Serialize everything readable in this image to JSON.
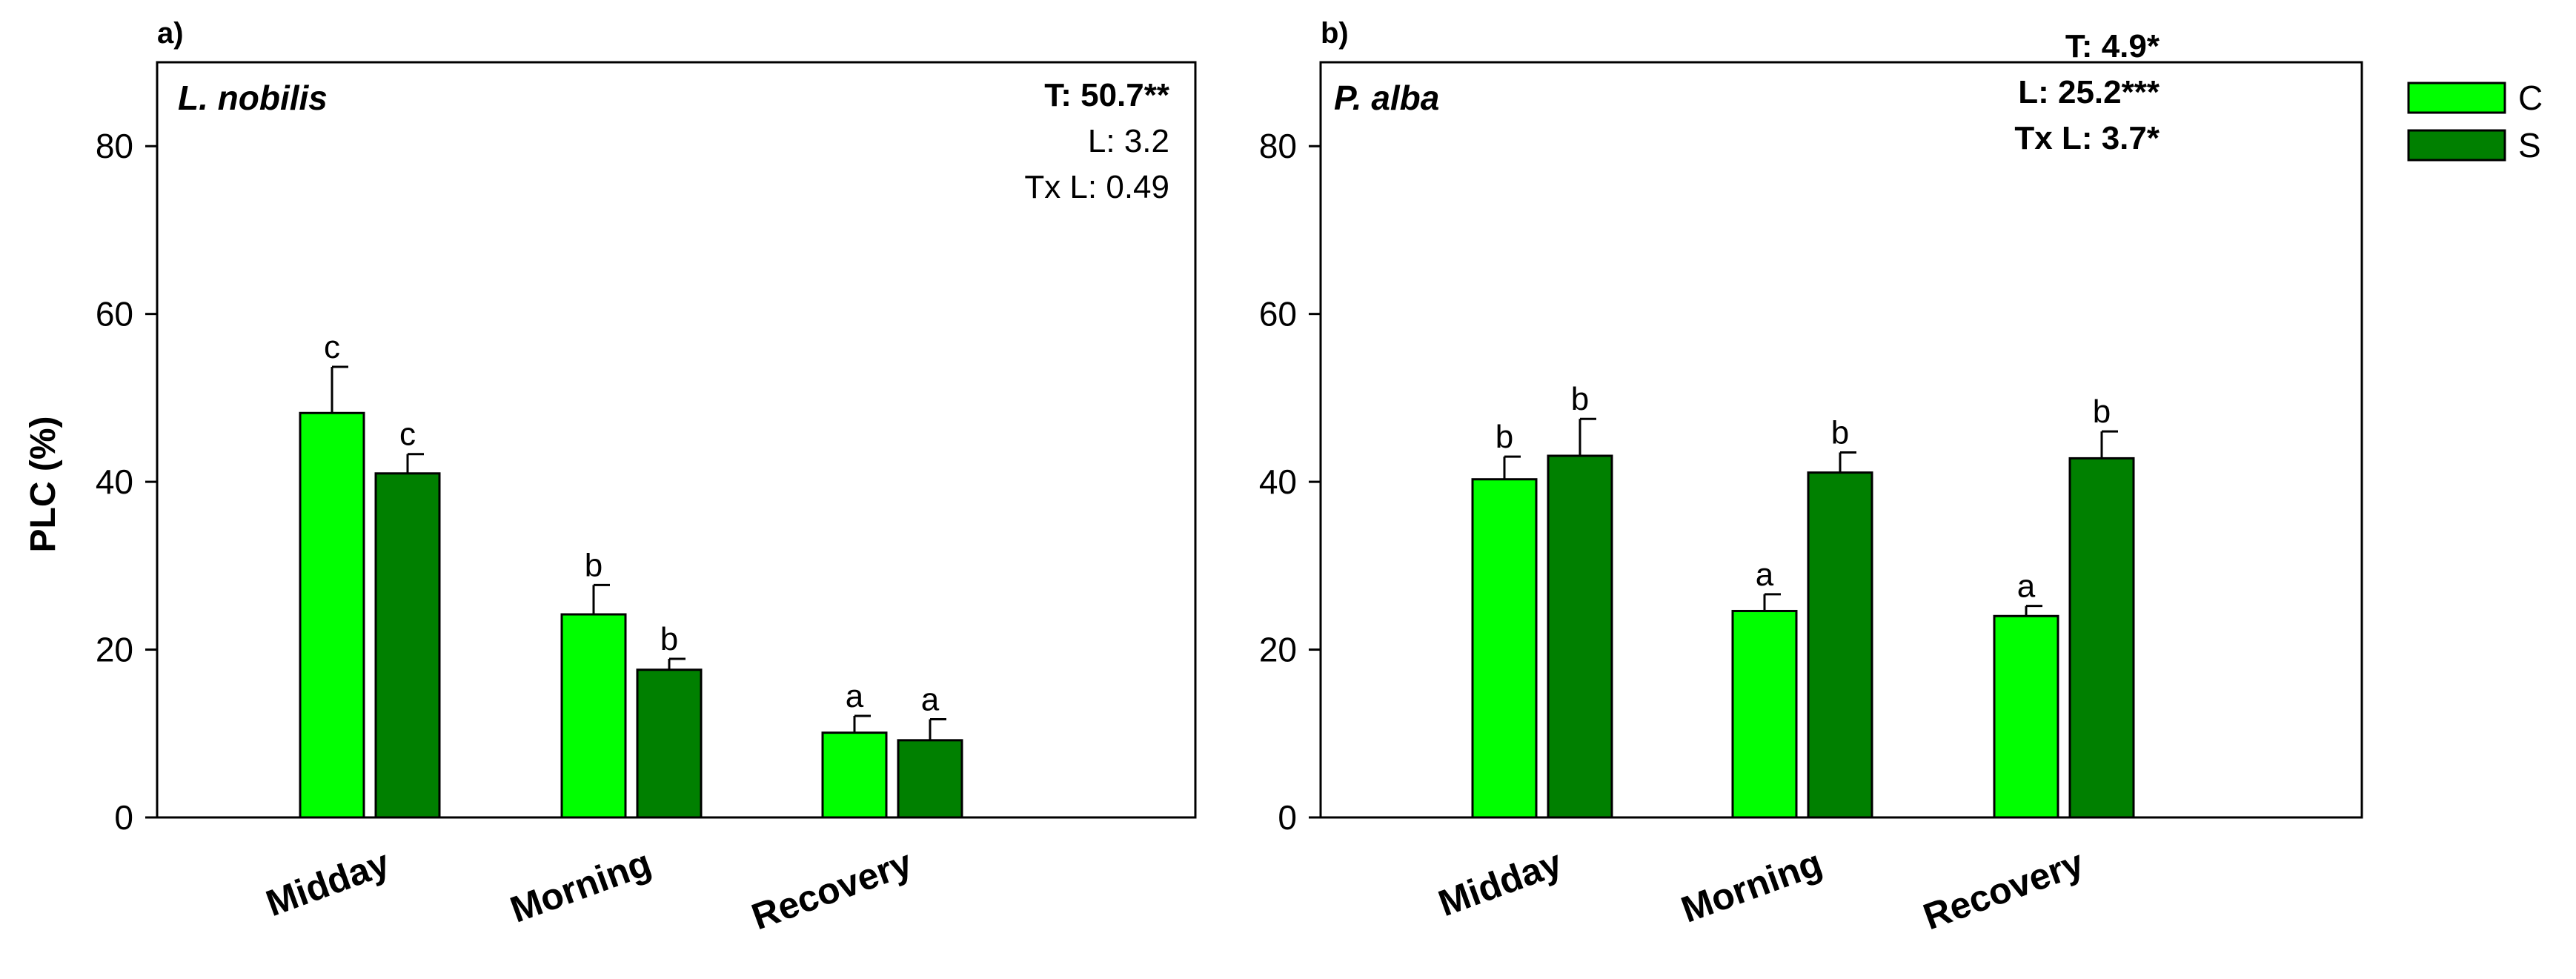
{
  "chart_data": [
    {
      "type": "bar",
      "panel_label": "a)",
      "species": "L. nobilis",
      "ylabel": "PLC (%)",
      "ylim": [
        0,
        90
      ],
      "yticks": [
        "0",
        "20",
        "40",
        "60",
        "80"
      ],
      "categories": [
        "Midday",
        "Morning",
        "Recovery"
      ],
      "series": [
        {
          "name": "C",
          "values": [
            48.2,
            24.2,
            10.1
          ],
          "errors": [
            5.5,
            3.5,
            2.0
          ],
          "letters": [
            "c",
            "b",
            "a"
          ]
        },
        {
          "name": "S",
          "values": [
            41.0,
            17.6,
            9.2
          ],
          "errors": [
            2.3,
            1.3,
            2.5
          ],
          "letters": [
            "c",
            "b",
            "a"
          ]
        }
      ],
      "stats": [
        {
          "text": "T: 50.7**",
          "bold": true
        },
        {
          "text": "L: 3.2",
          "bold": false
        },
        {
          "text": "Tx L: 0.49",
          "bold": false
        }
      ]
    },
    {
      "type": "bar",
      "panel_label": "b)",
      "species": "P. alba",
      "ylabel": "",
      "ylim": [
        0,
        90
      ],
      "yticks": [
        "0",
        "20",
        "40",
        "60",
        "80"
      ],
      "categories": [
        "Midday",
        "Morning",
        "Recovery"
      ],
      "series": [
        {
          "name": "C",
          "values": [
            40.3,
            24.6,
            24.0
          ],
          "errors": [
            2.7,
            2.0,
            1.2
          ],
          "letters": [
            "b",
            "a",
            "a"
          ]
        },
        {
          "name": "S",
          "values": [
            43.1,
            41.1,
            42.8
          ],
          "errors": [
            4.4,
            2.4,
            3.2
          ],
          "letters": [
            "b",
            "b",
            "b"
          ]
        }
      ],
      "stats": [
        {
          "text": "T: 4.9*",
          "bold": true
        },
        {
          "text": "L: 25.2***",
          "bold": true
        },
        {
          "text": "Tx L: 3.7*",
          "bold": true
        }
      ]
    }
  ],
  "legend": [
    {
      "name": "C",
      "color": "#00FF00"
    },
    {
      "name": "S",
      "color": "#008000"
    }
  ],
  "colors": {
    "C": "#00FF00",
    "S": "#008000",
    "axis": "#000000"
  }
}
